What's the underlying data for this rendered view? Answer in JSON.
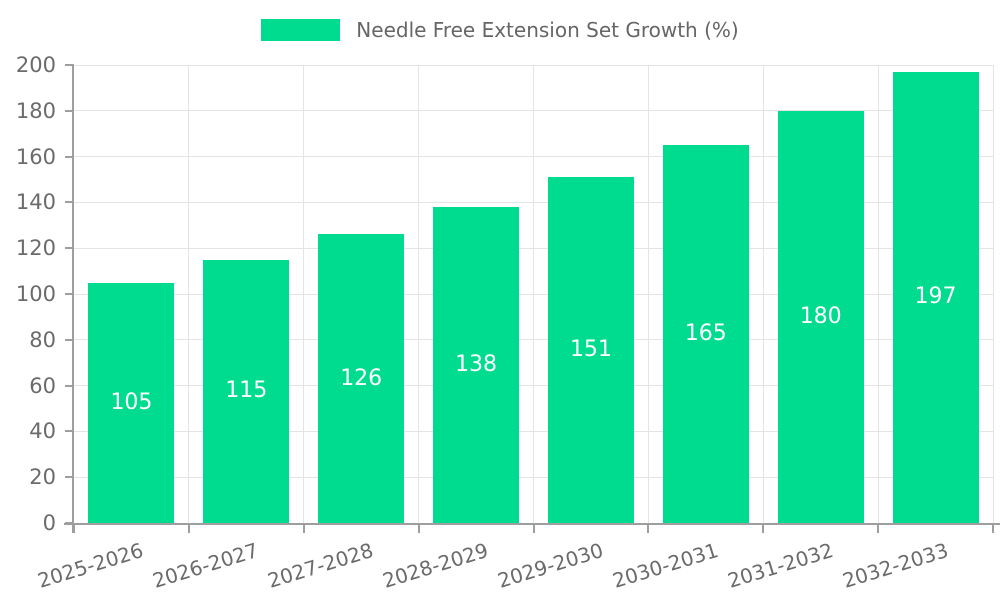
{
  "legend": {
    "label": "Needle Free Extension Set Growth (%)"
  },
  "chart_data": {
    "type": "bar",
    "title": "Needle Free Extension Set Growth (%)",
    "categories": [
      "2025-2026",
      "2026-2027",
      "2027-2028",
      "2028-2029",
      "2029-2030",
      "2030-2031",
      "2031-2032",
      "2032-2033"
    ],
    "values": [
      105,
      115,
      126,
      138,
      151,
      165,
      180,
      197
    ],
    "xlabel": "",
    "ylabel": "",
    "ylim": [
      0,
      200
    ],
    "y_tick_step": 20,
    "y_tick_labels": [
      "0",
      "20",
      "40",
      "60",
      "80",
      "100",
      "120",
      "140",
      "160",
      "180",
      "200"
    ],
    "grid": true,
    "legend_position": "top",
    "value_labels_inside_bars": true,
    "colors": {
      "bar": "#00DC8F",
      "value_label": "#ffffff",
      "axis": "#9e9e9e",
      "grid": "#e4e4e4",
      "tick_label": "#6b6b6b",
      "legend_text": "#666666",
      "background": "#ffffff"
    }
  }
}
